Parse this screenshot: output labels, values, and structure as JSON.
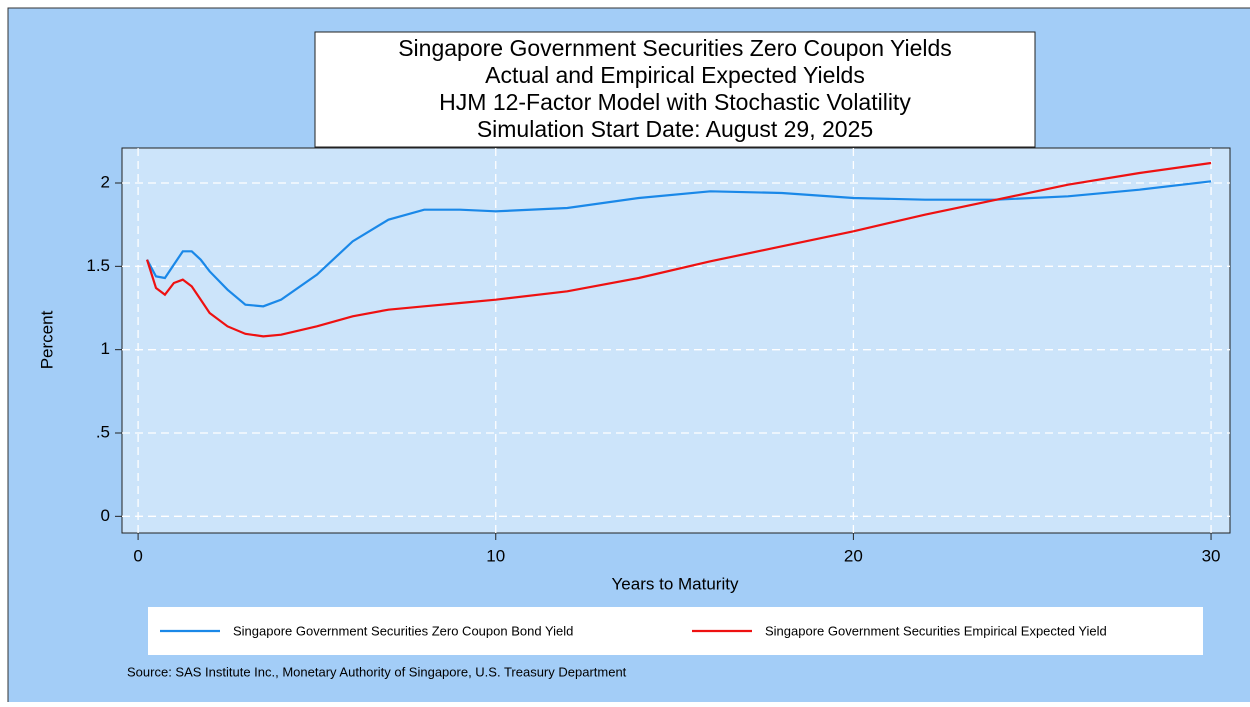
{
  "chart_data": {
    "type": "line",
    "title": [
      "Singapore Government Securities Zero Coupon Yields",
      "Actual and Empirical Expected Yields",
      "HJM 12-Factor Model with Stochastic Volatility",
      "Simulation Start Date: August 29, 2025"
    ],
    "x_label": "Years to Maturity",
    "y_label": "Percent",
    "note": "Source: SAS Institute Inc., Monetary Authority of Singapore, U.S. Treasury Department",
    "x": [
      0.25,
      0.5,
      0.75,
      1,
      1.25,
      1.5,
      1.75,
      2,
      2.5,
      3,
      3.5,
      4,
      5,
      6,
      7,
      8,
      9,
      10,
      12,
      14,
      16,
      18,
      20,
      22,
      24,
      26,
      28,
      30
    ],
    "series": [
      {
        "name": "Singapore Government Securities Zero Coupon Bond Yield",
        "color": "#1a88e8",
        "values": [
          1.54,
          1.44,
          1.43,
          1.51,
          1.59,
          1.59,
          1.54,
          1.47,
          1.36,
          1.27,
          1.26,
          1.3,
          1.45,
          1.65,
          1.78,
          1.84,
          1.84,
          1.83,
          1.85,
          1.91,
          1.95,
          1.94,
          1.91,
          1.9,
          1.9,
          1.92,
          1.96,
          2.01
        ]
      },
      {
        "name": "Singapore Government Securities Empirical Expected Yield",
        "color": "#ee1111",
        "values": [
          1.54,
          1.37,
          1.33,
          1.4,
          1.42,
          1.38,
          1.3,
          1.22,
          1.14,
          1.095,
          1.08,
          1.09,
          1.14,
          1.2,
          1.24,
          1.26,
          1.28,
          1.3,
          1.35,
          1.43,
          1.53,
          1.62,
          1.71,
          1.81,
          1.9,
          1.99,
          2.06,
          2.12
        ]
      }
    ],
    "xlim": [
      -0.45,
      30.53
    ],
    "xticks": [
      0,
      10,
      20,
      30
    ],
    "ylim": [
      -0.1,
      2.21
    ],
    "yticks": [
      0,
      {
        "value": 0.5,
        "label": ".5"
      },
      1,
      1.5,
      2
    ],
    "grid": true
  }
}
